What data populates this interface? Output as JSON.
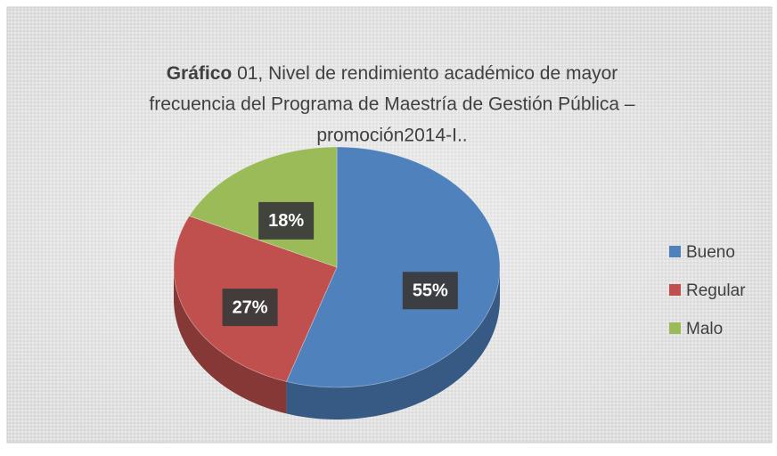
{
  "chart_data": {
    "type": "pie",
    "title": {
      "bold": "Gráfico",
      "lines": [
        "01,  Nivel de rendimiento académico de mayor",
        "frecuencia del Programa de Maestría  de Gestión Pública –",
        "promoción2014-I.."
      ]
    },
    "categories": [
      "Bueno",
      "Regular",
      "Malo"
    ],
    "values": [
      55,
      27,
      18
    ],
    "value_labels": [
      "55%",
      "27%",
      "18%"
    ],
    "colors": [
      "#4f81bd",
      "#c0504d",
      "#9bbb59"
    ],
    "legend": "right"
  }
}
